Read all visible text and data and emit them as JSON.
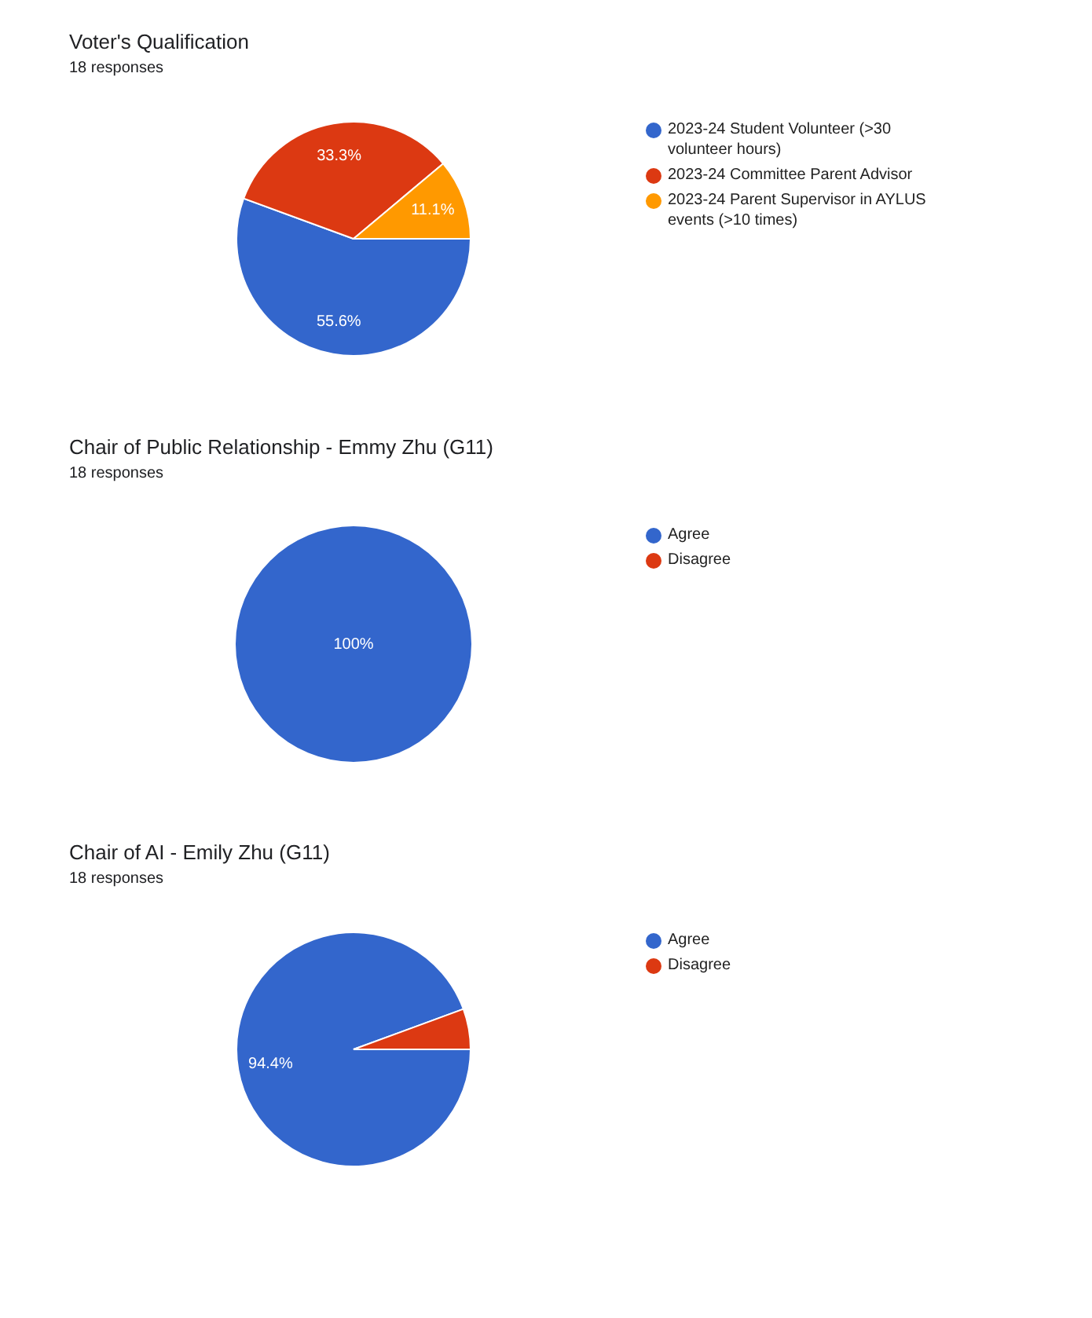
{
  "chart_data": [
    {
      "type": "pie",
      "title": "Voter's Qualification",
      "subtitle": "18 responses",
      "categories": [
        "2023-24 Student Volunteer (>30 volunteer hours)",
        "2023-24 Committee Parent Advisor",
        "2023-24 Parent Supervisor in AYLUS events (>10 times)"
      ],
      "values": [
        55.6,
        33.3,
        11.1
      ],
      "colors": [
        "#3366cc",
        "#dc3912",
        "#ff9900"
      ],
      "value_labels": [
        "55.6%",
        "33.3%",
        "11.1%"
      ],
      "legend": "right"
    },
    {
      "type": "pie",
      "title": "Chair of Public Relationship - Emmy Zhu (G11)",
      "subtitle": "18 responses",
      "categories": [
        "Agree",
        "Disagree"
      ],
      "values": [
        100,
        0
      ],
      "colors": [
        "#3366cc",
        "#dc3912"
      ],
      "value_labels": [
        "100%",
        null
      ],
      "legend": "right"
    },
    {
      "type": "pie",
      "title": "Chair of AI - Emily Zhu (G11)",
      "subtitle": "18 responses",
      "categories": [
        "Agree",
        "Disagree"
      ],
      "values": [
        94.4,
        5.6
      ],
      "colors": [
        "#3366cc",
        "#dc3912"
      ],
      "value_labels": [
        "94.4%",
        null
      ],
      "legend": "right"
    }
  ]
}
